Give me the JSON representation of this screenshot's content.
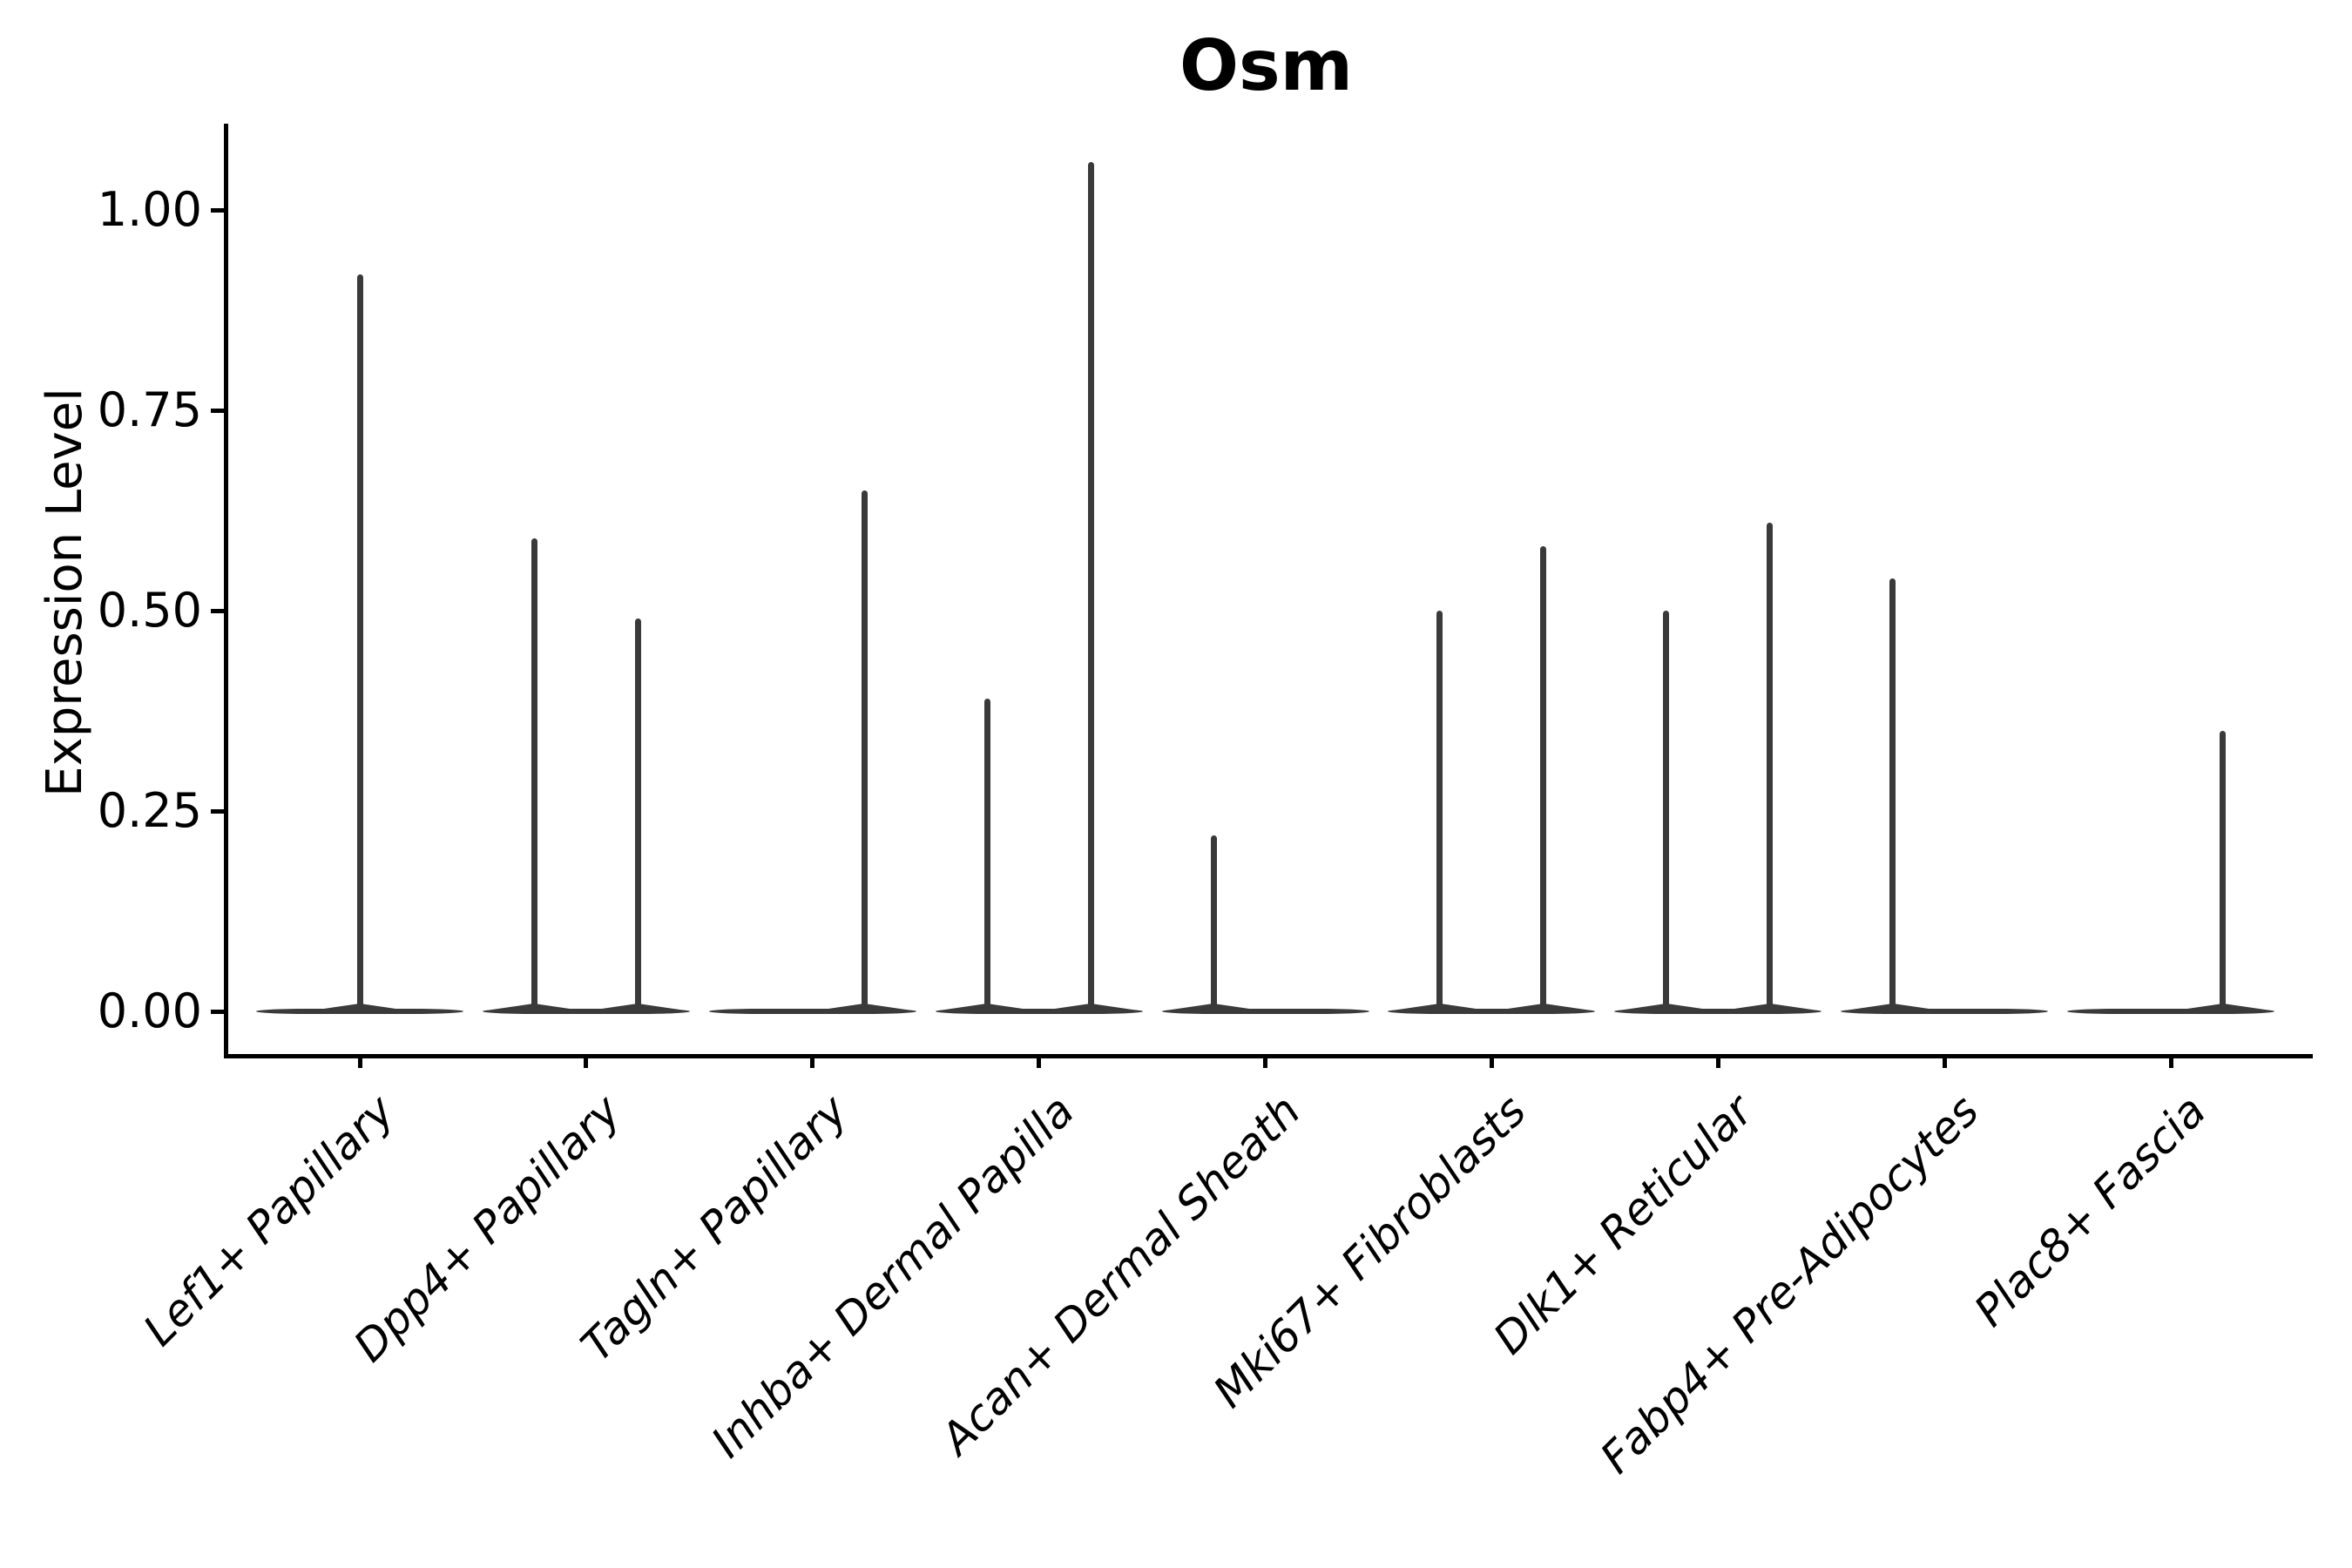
{
  "chart_data": {
    "type": "violin",
    "title": "Osm",
    "ylabel": "Expression Level",
    "xlabel": "",
    "ylim": [
      0,
      1.11
    ],
    "grid": false,
    "legend": false,
    "colors": {
      "violin": "#3a3a3a",
      "axis": "#000000",
      "text": "#000000",
      "background": "#ffffff"
    },
    "yticks": [
      {
        "value": 0.0,
        "label": "0.00"
      },
      {
        "value": 0.25,
        "label": "0.25"
      },
      {
        "value": 0.5,
        "label": "0.50"
      },
      {
        "value": 0.75,
        "label": "0.75"
      },
      {
        "value": 1.0,
        "label": "1.00"
      }
    ],
    "categories": [
      "Lef1+ Papillary",
      "Dpp4+ Papillary",
      "Tagln+ Papillary",
      "Inhba+ Dermal Papilla",
      "Acan+ Dermal Sheath",
      "Mki67+ Fibroblasts",
      "Dlk1+ Reticular",
      "Fabp4+ Pre-Adipocytes",
      "Plac8+ Fascia"
    ],
    "violins": [
      {
        "category": "Lef1+ Papillary",
        "baseline_value": 0,
        "spikes": [
          {
            "offset": 0,
            "max": 0.92
          }
        ]
      },
      {
        "category": "Dpp4+ Papillary",
        "baseline_value": 0,
        "spikes": [
          {
            "offset": -0.25,
            "max": 0.59
          },
          {
            "offset": 0.25,
            "max": 0.49
          }
        ]
      },
      {
        "category": "Tagln+ Papillary",
        "baseline_value": 0,
        "spikes": [
          {
            "offset": 0.25,
            "max": 0.65
          }
        ]
      },
      {
        "category": "Inhba+ Dermal Papilla",
        "baseline_value": 0,
        "spikes": [
          {
            "offset": -0.25,
            "max": 0.39
          },
          {
            "offset": 0.25,
            "max": 1.06
          }
        ]
      },
      {
        "category": "Acan+ Dermal Sheath",
        "baseline_value": 0,
        "spikes": [
          {
            "offset": -0.25,
            "max": 0.22
          }
        ]
      },
      {
        "category": "Mki67+ Fibroblasts",
        "baseline_value": 0,
        "spikes": [
          {
            "offset": -0.25,
            "max": 0.5
          },
          {
            "offset": 0.25,
            "max": 0.58
          }
        ]
      },
      {
        "category": "Dlk1+ Reticular",
        "baseline_value": 0,
        "spikes": [
          {
            "offset": -0.25,
            "max": 0.5
          },
          {
            "offset": 0.25,
            "max": 0.61
          }
        ]
      },
      {
        "category": "Fabp4+ Pre-Adipocytes",
        "baseline_value": 0,
        "spikes": [
          {
            "offset": -0.25,
            "max": 0.54
          }
        ]
      },
      {
        "category": "Plac8+ Fascia",
        "baseline_value": 0,
        "spikes": [
          {
            "offset": 0.25,
            "max": 0.35
          }
        ]
      }
    ]
  }
}
